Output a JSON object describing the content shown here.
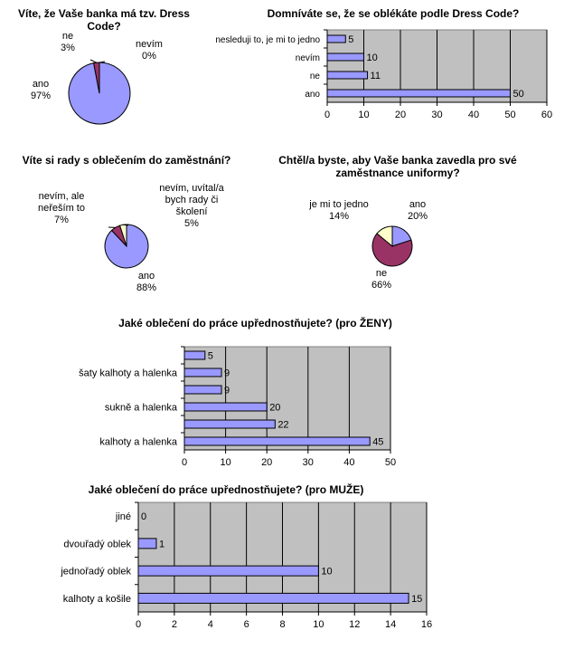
{
  "colors": {
    "lavender": "#9999ff",
    "plum": "#993366",
    "cream": "#ffffcc",
    "gray": "#c0c0c0",
    "outline": "#000000"
  },
  "chart_data": [
    {
      "id": "pie-dress-code",
      "type": "pie",
      "title": "Víte, že Vaše banka má tzv. Dress Code?",
      "slices": [
        {
          "label": "ano",
          "value": 97,
          "pct": "97%"
        },
        {
          "label": "ne",
          "value": 3,
          "pct": "3%"
        },
        {
          "label": "nevím",
          "value": 0,
          "pct": "0%"
        }
      ]
    },
    {
      "id": "bar-follow-code",
      "type": "bar",
      "orientation": "horizontal",
      "title": "Domníváte se, že se oblékáte podle Dress Code?",
      "categories": [
        "nesleduji to, je mi to jedno",
        "nevím",
        "ne",
        "ano"
      ],
      "values": [
        5,
        10,
        11,
        50
      ],
      "xlim": [
        0,
        60
      ],
      "xticks": [
        0,
        10,
        20,
        30,
        40,
        50,
        60
      ],
      "grid": true
    },
    {
      "id": "pie-advice",
      "type": "pie",
      "title": "Víte si rady s oblečením do zaměstnání?",
      "slices": [
        {
          "label": "ano",
          "value": 88,
          "pct": "88%"
        },
        {
          "label": "nevím, ale neřeším to",
          "value": 7,
          "pct": "7%"
        },
        {
          "label": "nevím, uvítal/a bych rady či školení",
          "value": 5,
          "pct": "5%"
        }
      ]
    },
    {
      "id": "pie-uniforms",
      "type": "pie",
      "title": "Chtěl/a byste, aby Vaše banka zavedla pro své zaměstnance uniformy?",
      "slices": [
        {
          "label": "ano",
          "value": 20,
          "pct": "20%"
        },
        {
          "label": "ne",
          "value": 66,
          "pct": "66%"
        },
        {
          "label": "je mi to jedno",
          "value": 14,
          "pct": "14%"
        }
      ]
    },
    {
      "id": "bar-women",
      "type": "bar",
      "orientation": "horizontal",
      "title": "Jaké oblečení do práce upřednostňujete? (pro ŽENY)",
      "categories": [
        "",
        "šaty kalhoty a halenka",
        "",
        "sukně a halenka",
        "",
        "kalhoty a halenka"
      ],
      "values": [
        5,
        9,
        9,
        20,
        22,
        45
      ],
      "xlim": [
        0,
        50
      ],
      "xticks": [
        0,
        10,
        20,
        30,
        40,
        50
      ],
      "grid": true
    },
    {
      "id": "bar-men",
      "type": "bar",
      "orientation": "horizontal",
      "title": "Jaké oblečení do práce upřednostňujete? (pro MUŽE)",
      "categories": [
        "jiné",
        "dvouřadý oblek",
        "jednořadý oblek",
        "kalhoty a košile"
      ],
      "values": [
        0,
        1,
        10,
        15
      ],
      "xlim": [
        0,
        16
      ],
      "xticks": [
        0,
        2,
        4,
        6,
        8,
        10,
        12,
        14,
        16
      ],
      "grid": true
    }
  ]
}
